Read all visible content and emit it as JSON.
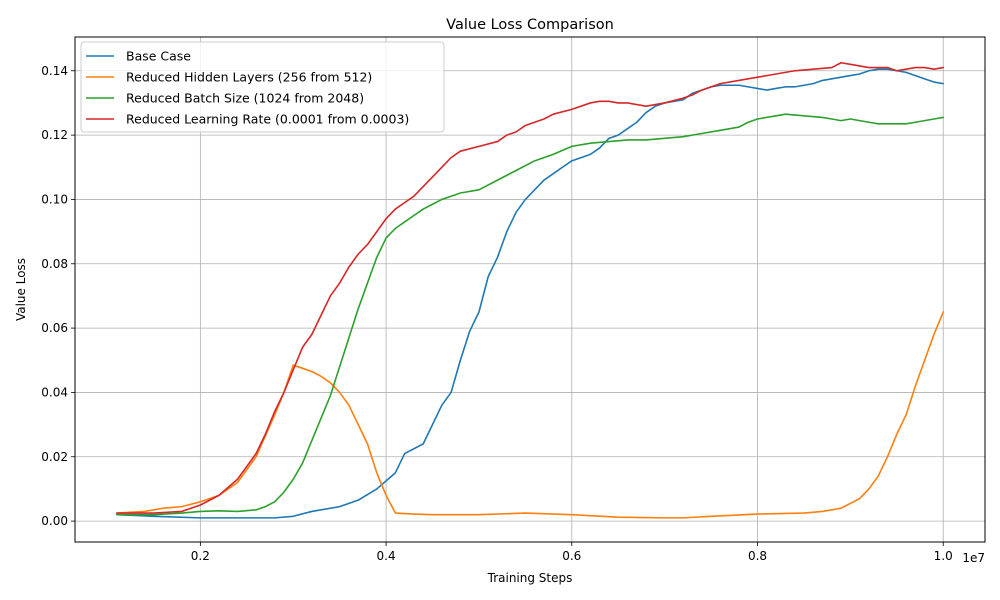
{
  "chart_data": {
    "type": "line",
    "title": "Value Loss Comparison",
    "xlabel": "Training Steps",
    "ylabel": "Value Loss",
    "x_offset_label": "1e7",
    "xlim": [
      0.065,
      1.045
    ],
    "ylim": [
      -0.0065,
      0.1505
    ],
    "x_ticks": [
      0.2,
      0.4,
      0.6,
      0.8,
      1.0
    ],
    "x_tick_labels": [
      "0.2",
      "0.4",
      "0.6",
      "0.8",
      "1.0"
    ],
    "y_ticks": [
      0.0,
      0.02,
      0.04,
      0.06,
      0.08,
      0.1,
      0.12,
      0.14
    ],
    "y_tick_labels": [
      "0.00",
      "0.02",
      "0.04",
      "0.06",
      "0.08",
      "0.10",
      "0.12",
      "0.14"
    ],
    "grid": true,
    "legend_position": "upper-left",
    "series": [
      {
        "name": "Base Case",
        "color": "#1f77b4",
        "points": [
          [
            0.11,
            0.002
          ],
          [
            0.15,
            0.0015
          ],
          [
            0.2,
            0.001
          ],
          [
            0.25,
            0.001
          ],
          [
            0.28,
            0.001
          ],
          [
            0.3,
            0.0015
          ],
          [
            0.32,
            0.003
          ],
          [
            0.35,
            0.0045
          ],
          [
            0.37,
            0.0065
          ],
          [
            0.39,
            0.01
          ],
          [
            0.41,
            0.015
          ],
          [
            0.42,
            0.021
          ],
          [
            0.44,
            0.024
          ],
          [
            0.45,
            0.03
          ],
          [
            0.46,
            0.036
          ],
          [
            0.47,
            0.04
          ],
          [
            0.48,
            0.05
          ],
          [
            0.49,
            0.059
          ],
          [
            0.5,
            0.065
          ],
          [
            0.51,
            0.076
          ],
          [
            0.52,
            0.082
          ],
          [
            0.53,
            0.09
          ],
          [
            0.54,
            0.096
          ],
          [
            0.55,
            0.1
          ],
          [
            0.56,
            0.103
          ],
          [
            0.57,
            0.106
          ],
          [
            0.58,
            0.108
          ],
          [
            0.59,
            0.11
          ],
          [
            0.6,
            0.112
          ],
          [
            0.62,
            0.114
          ],
          [
            0.63,
            0.116
          ],
          [
            0.64,
            0.119
          ],
          [
            0.65,
            0.12
          ],
          [
            0.66,
            0.122
          ],
          [
            0.67,
            0.124
          ],
          [
            0.68,
            0.127
          ],
          [
            0.69,
            0.129
          ],
          [
            0.7,
            0.13
          ],
          [
            0.72,
            0.131
          ],
          [
            0.73,
            0.133
          ],
          [
            0.74,
            0.134
          ],
          [
            0.75,
            0.135
          ],
          [
            0.76,
            0.1355
          ],
          [
            0.78,
            0.1355
          ],
          [
            0.79,
            0.135
          ],
          [
            0.8,
            0.1345
          ],
          [
            0.81,
            0.134
          ],
          [
            0.82,
            0.1345
          ],
          [
            0.83,
            0.135
          ],
          [
            0.84,
            0.135
          ],
          [
            0.85,
            0.1355
          ],
          [
            0.86,
            0.136
          ],
          [
            0.87,
            0.137
          ],
          [
            0.88,
            0.1375
          ],
          [
            0.89,
            0.138
          ],
          [
            0.9,
            0.1385
          ],
          [
            0.91,
            0.139
          ],
          [
            0.92,
            0.14
          ],
          [
            0.93,
            0.1405
          ],
          [
            0.94,
            0.1405
          ],
          [
            0.95,
            0.14
          ],
          [
            0.96,
            0.1395
          ],
          [
            0.97,
            0.1385
          ],
          [
            0.98,
            0.1375
          ],
          [
            0.99,
            0.1365
          ],
          [
            1.0,
            0.136
          ]
        ]
      },
      {
        "name": "Reduced Hidden Layers (256 from 512)",
        "color": "#ff7f0e",
        "points": [
          [
            0.11,
            0.0025
          ],
          [
            0.14,
            0.003
          ],
          [
            0.16,
            0.004
          ],
          [
            0.18,
            0.0045
          ],
          [
            0.2,
            0.006
          ],
          [
            0.22,
            0.008
          ],
          [
            0.24,
            0.012
          ],
          [
            0.26,
            0.02
          ],
          [
            0.28,
            0.033
          ],
          [
            0.29,
            0.04
          ],
          [
            0.3,
            0.0485
          ],
          [
            0.31,
            0.0475
          ],
          [
            0.32,
            0.0465
          ],
          [
            0.33,
            0.045
          ],
          [
            0.34,
            0.043
          ],
          [
            0.35,
            0.04
          ],
          [
            0.36,
            0.036
          ],
          [
            0.37,
            0.03
          ],
          [
            0.38,
            0.024
          ],
          [
            0.39,
            0.015
          ],
          [
            0.4,
            0.008
          ],
          [
            0.41,
            0.0025
          ],
          [
            0.43,
            0.0022
          ],
          [
            0.45,
            0.002
          ],
          [
            0.5,
            0.002
          ],
          [
            0.55,
            0.0025
          ],
          [
            0.6,
            0.002
          ],
          [
            0.65,
            0.0012
          ],
          [
            0.7,
            0.001
          ],
          [
            0.72,
            0.001
          ],
          [
            0.75,
            0.0015
          ],
          [
            0.8,
            0.0022
          ],
          [
            0.85,
            0.0025
          ],
          [
            0.87,
            0.003
          ],
          [
            0.89,
            0.004
          ],
          [
            0.91,
            0.007
          ],
          [
            0.92,
            0.01
          ],
          [
            0.93,
            0.014
          ],
          [
            0.94,
            0.02
          ],
          [
            0.95,
            0.027
          ],
          [
            0.96,
            0.033
          ],
          [
            0.97,
            0.042
          ],
          [
            0.98,
            0.05
          ],
          [
            0.99,
            0.058
          ],
          [
            1.0,
            0.065
          ]
        ]
      },
      {
        "name": "Reduced Batch Size (1024 from 2048)",
        "color": "#2ca02c",
        "points": [
          [
            0.11,
            0.002
          ],
          [
            0.15,
            0.002
          ],
          [
            0.18,
            0.0025
          ],
          [
            0.2,
            0.003
          ],
          [
            0.22,
            0.0032
          ],
          [
            0.24,
            0.003
          ],
          [
            0.26,
            0.0035
          ],
          [
            0.27,
            0.0045
          ],
          [
            0.28,
            0.006
          ],
          [
            0.29,
            0.009
          ],
          [
            0.3,
            0.013
          ],
          [
            0.31,
            0.018
          ],
          [
            0.32,
            0.025
          ],
          [
            0.33,
            0.032
          ],
          [
            0.34,
            0.039
          ],
          [
            0.35,
            0.048
          ],
          [
            0.36,
            0.057
          ],
          [
            0.37,
            0.066
          ],
          [
            0.38,
            0.074
          ],
          [
            0.39,
            0.082
          ],
          [
            0.4,
            0.088
          ],
          [
            0.41,
            0.091
          ],
          [
            0.42,
            0.093
          ],
          [
            0.43,
            0.095
          ],
          [
            0.44,
            0.097
          ],
          [
            0.45,
            0.0985
          ],
          [
            0.46,
            0.1
          ],
          [
            0.47,
            0.101
          ],
          [
            0.48,
            0.102
          ],
          [
            0.5,
            0.103
          ],
          [
            0.52,
            0.106
          ],
          [
            0.54,
            0.109
          ],
          [
            0.56,
            0.112
          ],
          [
            0.58,
            0.114
          ],
          [
            0.6,
            0.1165
          ],
          [
            0.62,
            0.1175
          ],
          [
            0.64,
            0.118
          ],
          [
            0.66,
            0.1185
          ],
          [
            0.68,
            0.1185
          ],
          [
            0.7,
            0.119
          ],
          [
            0.72,
            0.1195
          ],
          [
            0.74,
            0.1205
          ],
          [
            0.76,
            0.1215
          ],
          [
            0.78,
            0.1225
          ],
          [
            0.79,
            0.124
          ],
          [
            0.8,
            0.125
          ],
          [
            0.82,
            0.126
          ],
          [
            0.83,
            0.1265
          ],
          [
            0.85,
            0.126
          ],
          [
            0.87,
            0.1255
          ],
          [
            0.88,
            0.125
          ],
          [
            0.89,
            0.1245
          ],
          [
            0.9,
            0.125
          ],
          [
            0.91,
            0.1245
          ],
          [
            0.92,
            0.124
          ],
          [
            0.93,
            0.1235
          ],
          [
            0.94,
            0.1235
          ],
          [
            0.95,
            0.1235
          ],
          [
            0.96,
            0.1235
          ],
          [
            0.97,
            0.124
          ],
          [
            0.98,
            0.1245
          ],
          [
            0.99,
            0.125
          ],
          [
            1.0,
            0.1255
          ]
        ]
      },
      {
        "name": "Reduced Learning Rate (0.0001 from 0.0003)",
        "color": "#d62728",
        "points": [
          [
            0.11,
            0.0025
          ],
          [
            0.15,
            0.0025
          ],
          [
            0.18,
            0.003
          ],
          [
            0.2,
            0.005
          ],
          [
            0.22,
            0.008
          ],
          [
            0.24,
            0.013
          ],
          [
            0.25,
            0.017
          ],
          [
            0.26,
            0.021
          ],
          [
            0.27,
            0.027
          ],
          [
            0.28,
            0.034
          ],
          [
            0.29,
            0.04
          ],
          [
            0.3,
            0.047
          ],
          [
            0.31,
            0.054
          ],
          [
            0.32,
            0.058
          ],
          [
            0.33,
            0.064
          ],
          [
            0.34,
            0.07
          ],
          [
            0.35,
            0.074
          ],
          [
            0.36,
            0.079
          ],
          [
            0.37,
            0.083
          ],
          [
            0.38,
            0.086
          ],
          [
            0.39,
            0.09
          ],
          [
            0.4,
            0.094
          ],
          [
            0.41,
            0.097
          ],
          [
            0.42,
            0.099
          ],
          [
            0.43,
            0.101
          ],
          [
            0.44,
            0.104
          ],
          [
            0.45,
            0.107
          ],
          [
            0.46,
            0.11
          ],
          [
            0.47,
            0.113
          ],
          [
            0.48,
            0.115
          ],
          [
            0.5,
            0.1165
          ],
          [
            0.52,
            0.118
          ],
          [
            0.53,
            0.12
          ],
          [
            0.54,
            0.121
          ],
          [
            0.55,
            0.123
          ],
          [
            0.57,
            0.125
          ],
          [
            0.58,
            0.1265
          ],
          [
            0.6,
            0.128
          ],
          [
            0.62,
            0.13
          ],
          [
            0.63,
            0.1305
          ],
          [
            0.64,
            0.1305
          ],
          [
            0.65,
            0.13
          ],
          [
            0.66,
            0.13
          ],
          [
            0.67,
            0.1295
          ],
          [
            0.68,
            0.129
          ],
          [
            0.69,
            0.1295
          ],
          [
            0.7,
            0.13
          ],
          [
            0.72,
            0.1315
          ],
          [
            0.73,
            0.1325
          ],
          [
            0.74,
            0.134
          ],
          [
            0.75,
            0.135
          ],
          [
            0.76,
            0.136
          ],
          [
            0.78,
            0.137
          ],
          [
            0.8,
            0.138
          ],
          [
            0.82,
            0.139
          ],
          [
            0.84,
            0.14
          ],
          [
            0.86,
            0.1405
          ],
          [
            0.88,
            0.141
          ],
          [
            0.89,
            0.1425
          ],
          [
            0.9,
            0.142
          ],
          [
            0.91,
            0.1415
          ],
          [
            0.92,
            0.141
          ],
          [
            0.94,
            0.141
          ],
          [
            0.95,
            0.14
          ],
          [
            0.96,
            0.1405
          ],
          [
            0.97,
            0.141
          ],
          [
            0.98,
            0.141
          ],
          [
            0.99,
            0.1405
          ],
          [
            1.0,
            0.141
          ]
        ]
      }
    ]
  }
}
